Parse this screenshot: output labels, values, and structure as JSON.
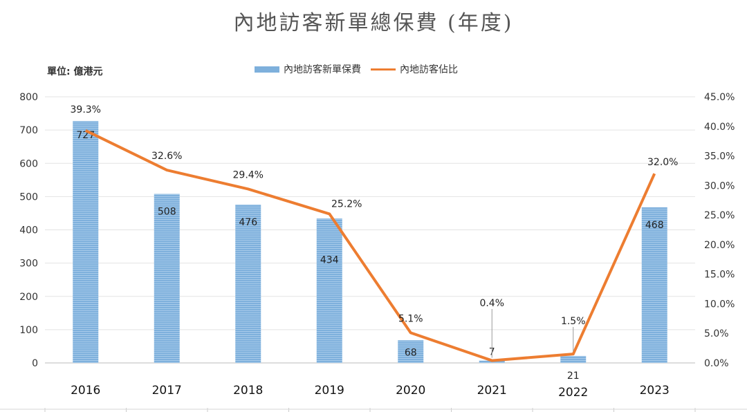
{
  "chart_data": {
    "type": "bar",
    "title": "內地訪客新單總保費 (年度)",
    "unit_label": "單位: 億港元",
    "categories": [
      "2016",
      "2017",
      "2018",
      "2019",
      "2020",
      "2021",
      "2022",
      "2023"
    ],
    "series": [
      {
        "name": "內地訪客新單保費",
        "type": "bar",
        "axis": "left",
        "values": [
          727,
          508,
          476,
          434,
          68,
          7,
          21,
          468
        ],
        "labels": [
          "727",
          "508",
          "476",
          "434",
          "68",
          "7",
          "21",
          "468"
        ],
        "color": "#7eb0dc"
      },
      {
        "name": "內地訪客佔比",
        "type": "line",
        "axis": "right",
        "values": [
          39.3,
          32.6,
          29.4,
          25.2,
          5.1,
          0.4,
          1.5,
          32.0
        ],
        "labels": [
          "39.3%",
          "32.6%",
          "29.4%",
          "25.2%",
          "5.1%",
          "0.4%",
          "1.5%",
          "32.0%"
        ],
        "color": "#ed7d31"
      }
    ],
    "y_left": {
      "range": [
        0,
        800
      ],
      "ticks": [
        "0",
        "100",
        "200",
        "300",
        "400",
        "500",
        "600",
        "700",
        "800"
      ]
    },
    "y_right": {
      "range": [
        0,
        45
      ],
      "ticks": [
        "0.0%",
        "5.0%",
        "10.0%",
        "15.0%",
        "20.0%",
        "25.0%",
        "30.0%",
        "35.0%",
        "40.0%",
        "45.0%"
      ]
    },
    "legend_position": "top-center",
    "grid": true
  }
}
